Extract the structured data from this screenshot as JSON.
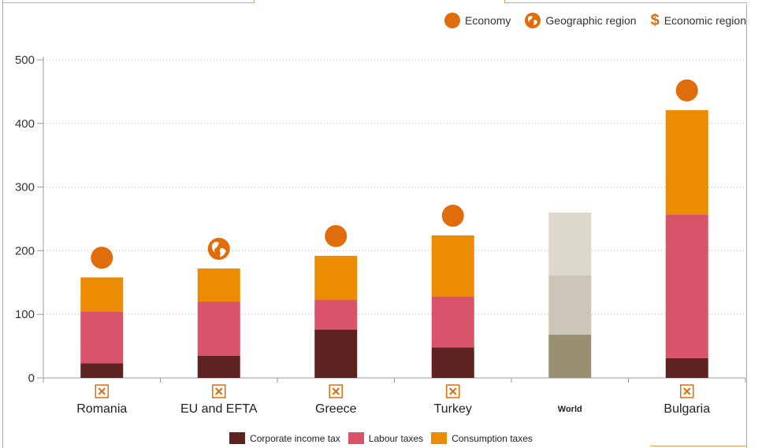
{
  "legend_top": [
    {
      "label": "Economy",
      "icon": "economy-dot-icon"
    },
    {
      "label": "Geographic region",
      "icon": "globe-icon"
    },
    {
      "label": "Economic region",
      "icon": "dollar-icon"
    }
  ],
  "colors": {
    "corporate": "#5e2220",
    "labour": "#d9536a",
    "consumption": "#ec8c00",
    "world_corporate": "#9a8f6e",
    "world_labour": "#cbc6b8",
    "world_consumption": "#dcd9cc",
    "marker": "#e06c0b"
  },
  "chart_data": {
    "type": "bar",
    "stacked": true,
    "categories": [
      "Romania",
      "EU and EFTA",
      "Greece",
      "Turkey",
      "World",
      "Bulgaria"
    ],
    "category_markers": [
      "economy",
      "geographic-region",
      "economy",
      "economy",
      "none",
      "economy"
    ],
    "series": [
      {
        "name": "Corporate income tax",
        "values": [
          23,
          35,
          76,
          48,
          68,
          31
        ]
      },
      {
        "name": "Labour taxes",
        "values": [
          81,
          85,
          47,
          80,
          93,
          226
        ]
      },
      {
        "name": "Consumption taxes",
        "values": [
          54,
          52,
          69,
          96,
          99,
          164
        ]
      }
    ],
    "yticks": [
      0,
      100,
      200,
      300,
      400,
      500
    ],
    "ylim": [
      0,
      500
    ],
    "grid": true,
    "legend_position": "bottom"
  }
}
